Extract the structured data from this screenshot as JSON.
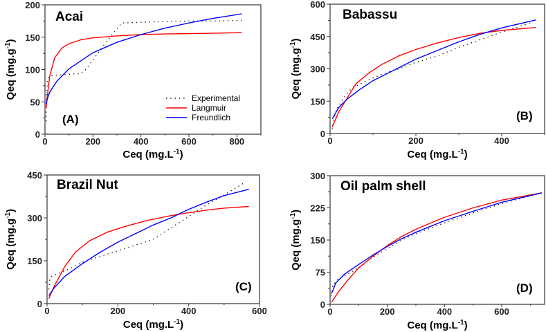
{
  "colors": {
    "Experimental": "#000000",
    "Langmuir": "#ff0000",
    "Freundlich": "#0000ff"
  },
  "legend": {
    "placement": "inside-lower-right of panel A",
    "entries": [
      "Experimental",
      "Langmuir",
      "Freundlich"
    ]
  },
  "chart_data": [
    {
      "type": "line",
      "title": "Acai",
      "panel_label": "(A)",
      "xlabel": {
        "base": "Ceq (mg.L",
        "sup": "-1",
        "end": ")"
      },
      "ylabel": {
        "base": "Qeq (mg.g",
        "sup": "-1",
        "end": ")"
      },
      "xlim": [
        0,
        900
      ],
      "ylim": [
        0,
        200
      ],
      "xticks": [
        0,
        200,
        400,
        600,
        800
      ],
      "yticks": [
        0,
        50,
        100,
        150,
        200
      ],
      "series": [
        {
          "name": "Experimental",
          "style": "dotted",
          "x": [
            5,
            5,
            7,
            10,
            20,
            40,
            80,
            150,
            170,
            200,
            250,
            300,
            320,
            400,
            500,
            600,
            700,
            820
          ],
          "y": [
            20,
            40,
            65,
            85,
            90,
            91,
            92,
            94,
            100,
            115,
            140,
            163,
            172,
            173,
            174,
            175,
            175,
            176
          ]
        },
        {
          "name": "Langmuir",
          "style": "solid",
          "x": [
            5,
            10,
            20,
            40,
            70,
            100,
            150,
            200,
            300,
            400,
            500,
            600,
            700,
            820
          ],
          "y": [
            40,
            60,
            90,
            118,
            133,
            140,
            146,
            149,
            152,
            154,
            155,
            155.5,
            156,
            157
          ]
        },
        {
          "name": "Freundlich",
          "style": "solid",
          "x": [
            5,
            10,
            20,
            50,
            100,
            200,
            300,
            400,
            500,
            600,
            700,
            820
          ],
          "y": [
            46,
            55,
            65,
            82,
            101,
            126,
            142,
            154,
            164,
            172,
            179,
            186
          ]
        }
      ]
    },
    {
      "type": "line",
      "title": "Babassu",
      "panel_label": "(B)",
      "xlabel": {
        "base": "Ceq (mg.L",
        "sup": "-1",
        "end": ")"
      },
      "ylabel": {
        "base": "Qeq (mg.g",
        "sup": "-1",
        "end": ")"
      },
      "xlim": [
        0,
        500
      ],
      "ylim": [
        0,
        600
      ],
      "xticks": [
        0,
        200,
        400
      ],
      "yticks": [
        0,
        150,
        300,
        450,
        600
      ],
      "series": [
        {
          "name": "Experimental",
          "style": "dotted",
          "x": [
            5,
            8,
            15,
            30,
            50,
            80,
            120,
            160,
            200,
            250,
            300,
            350,
            400,
            470
          ],
          "y": [
            20,
            60,
            110,
            160,
            210,
            240,
            275,
            300,
            330,
            360,
            400,
            435,
            470,
            515
          ]
        },
        {
          "name": "Langmuir",
          "style": "solid",
          "x": [
            5,
            20,
            40,
            60,
            90,
            120,
            160,
            200,
            250,
            300,
            350,
            400,
            480
          ],
          "y": [
            30,
            100,
            165,
            230,
            280,
            320,
            360,
            390,
            420,
            445,
            465,
            478,
            492
          ]
        },
        {
          "name": "Freundlich",
          "style": "solid",
          "x": [
            5,
            20,
            40,
            70,
            100,
            150,
            200,
            250,
            300,
            350,
            400,
            480
          ],
          "y": [
            68,
            120,
            160,
            205,
            245,
            295,
            345,
            385,
            425,
            460,
            490,
            527
          ]
        }
      ]
    },
    {
      "type": "line",
      "title": "Brazil Nut",
      "panel_label": "(C)",
      "xlabel": {
        "base": "Ceq (mg.L",
        "sup": "-1",
        "end": ")"
      },
      "ylabel": {
        "base": "Qeq (mg.g",
        "sup": "-1",
        "end": ")"
      },
      "xlim": [
        0,
        600
      ],
      "ylim": [
        0,
        450
      ],
      "xticks": [
        0,
        200,
        400,
        600
      ],
      "yticks": [
        0,
        150,
        300,
        450
      ],
      "series": [
        {
          "name": "Experimental",
          "style": "dotted",
          "x": [
            5,
            8,
            15,
            30,
            60,
            100,
            150,
            200,
            250,
            300,
            350,
            400,
            450,
            500,
            560
          ],
          "y": [
            50,
            88,
            98,
            105,
            120,
            145,
            165,
            185,
            205,
            225,
            265,
            305,
            345,
            380,
            425
          ]
        },
        {
          "name": "Langmuir",
          "style": "solid",
          "x": [
            5,
            20,
            50,
            80,
            120,
            170,
            220,
            280,
            350,
            400,
            450,
            500,
            570
          ],
          "y": [
            18,
            60,
            130,
            180,
            220,
            250,
            270,
            290,
            308,
            318,
            327,
            334,
            340
          ]
        },
        {
          "name": "Freundlich",
          "style": "solid",
          "x": [
            5,
            20,
            50,
            100,
            150,
            200,
            250,
            300,
            350,
            400,
            450,
            500,
            570
          ],
          "y": [
            28,
            55,
            95,
            140,
            180,
            215,
            245,
            275,
            300,
            330,
            355,
            378,
            400
          ]
        }
      ]
    },
    {
      "type": "line",
      "title": "Oil palm shell",
      "panel_label": "(D)",
      "xlabel": {
        "base": "Ceq (mg.L",
        "sup": "-1",
        "end": ")"
      },
      "ylabel": {
        "base": "Qeq (mg.g",
        "sup": "-1",
        "end": ")"
      },
      "xlim": [
        0,
        750
      ],
      "ylim": [
        0,
        300
      ],
      "xticks": [
        0,
        200,
        400,
        600
      ],
      "yticks": [
        0,
        75,
        150,
        225,
        300
      ],
      "series": [
        {
          "name": "Experimental",
          "style": "dotted",
          "x": [
            5,
            10,
            30,
            60,
            100,
            150,
            200,
            250,
            300,
            400,
            500,
            600,
            740
          ],
          "y": [
            20,
            45,
            60,
            70,
            85,
            110,
            130,
            150,
            165,
            190,
            213,
            235,
            260
          ]
        },
        {
          "name": "Langmuir",
          "style": "solid",
          "x": [
            5,
            30,
            60,
            100,
            150,
            200,
            250,
            300,
            400,
            500,
            600,
            740
          ],
          "y": [
            5,
            30,
            55,
            85,
            112,
            137,
            158,
            175,
            203,
            225,
            243,
            260
          ]
        },
        {
          "name": "Freundlich",
          "style": "solid",
          "x": [
            5,
            20,
            50,
            100,
            150,
            200,
            250,
            300,
            400,
            500,
            600,
            740
          ],
          "y": [
            25,
            50,
            70,
            93,
            115,
            135,
            153,
            168,
            195,
            217,
            238,
            260
          ]
        }
      ]
    }
  ]
}
